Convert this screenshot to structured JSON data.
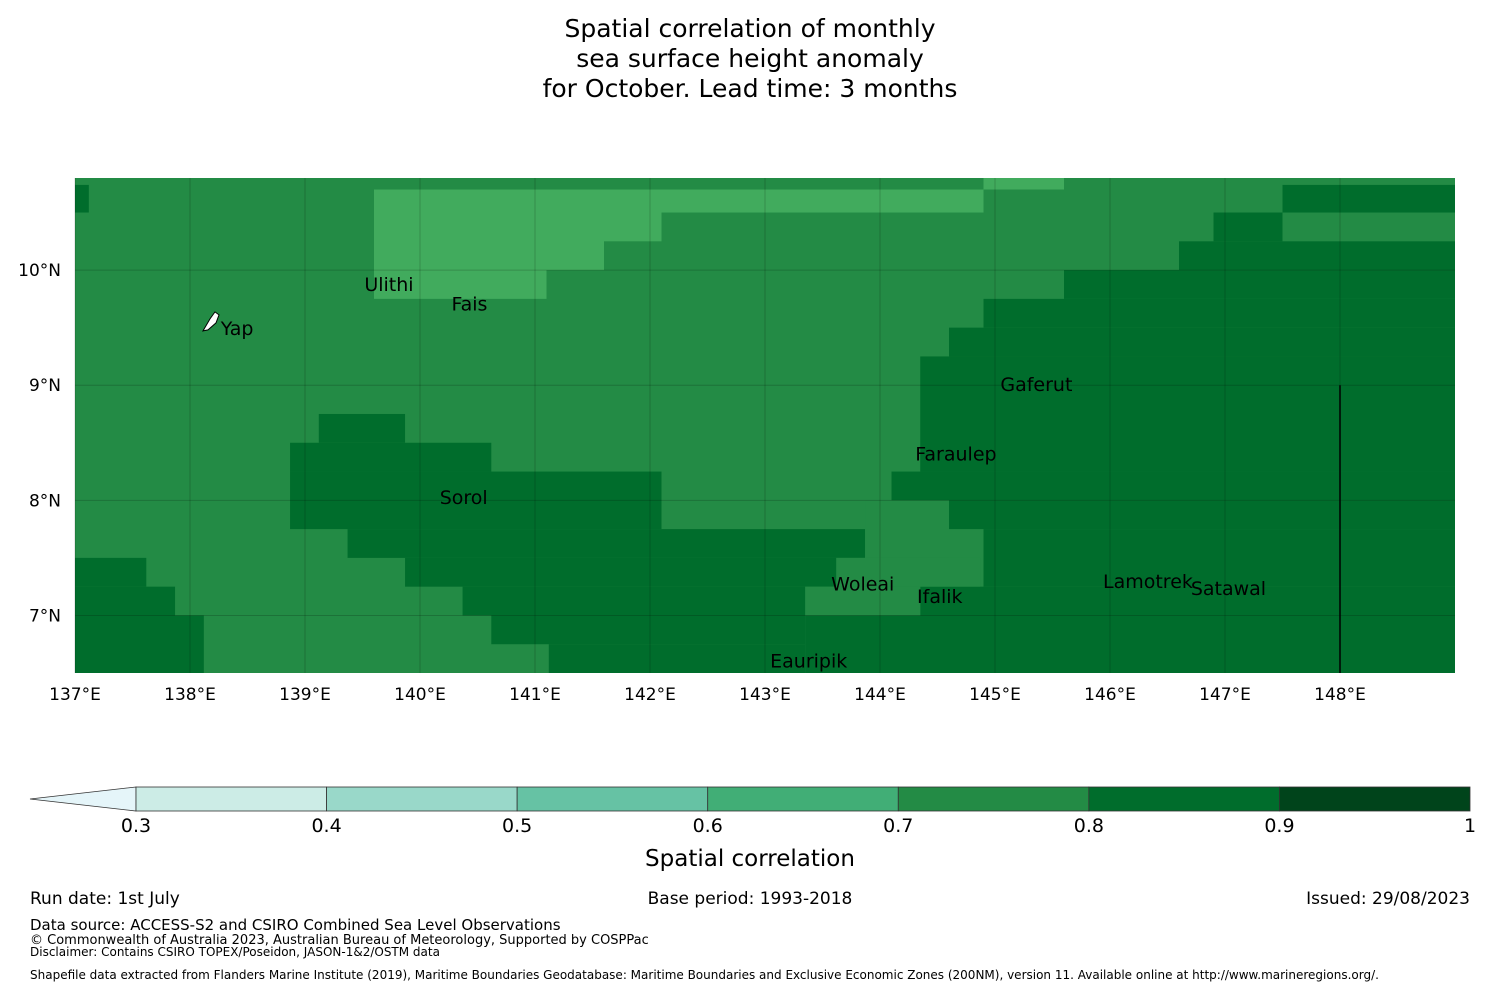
{
  "title_lines": [
    "Spatial correlation of monthly",
    "sea surface height anomaly",
    "for October. Lead time: 3 months"
  ],
  "map": {
    "lon_range": [
      137,
      149
    ],
    "lat_range": [
      6.5,
      10.8
    ],
    "lon_ticks": [
      {
        "value": 137,
        "label": "137°E"
      },
      {
        "value": 138,
        "label": "138°E"
      },
      {
        "value": 139,
        "label": "139°E"
      },
      {
        "value": 140,
        "label": "140°E"
      },
      {
        "value": 141,
        "label": "141°E"
      },
      {
        "value": 142,
        "label": "142°E"
      },
      {
        "value": 143,
        "label": "143°E"
      },
      {
        "value": 144,
        "label": "144°E"
      },
      {
        "value": 145,
        "label": "145°E"
      },
      {
        "value": 146,
        "label": "146°E"
      },
      {
        "value": 147,
        "label": "147°E"
      },
      {
        "value": 148,
        "label": "148°E"
      }
    ],
    "lat_ticks": [
      {
        "value": 10,
        "label": "10°N"
      },
      {
        "value": 9,
        "label": "9°N"
      },
      {
        "value": 8,
        "label": "8°N"
      },
      {
        "value": 7,
        "label": "7°N"
      }
    ],
    "grid": true,
    "base_color": "#238b45",
    "regions": [
      {
        "color": "#41ab5d",
        "lon": [
          139.6,
          141.1
        ],
        "lat": [
          9.75,
          10.7
        ]
      },
      {
        "color": "#41ab5d",
        "lon": [
          141.1,
          141.6
        ],
        "lat": [
          10.0,
          10.7
        ]
      },
      {
        "color": "#41ab5d",
        "lon": [
          141.6,
          142.1
        ],
        "lat": [
          10.25,
          10.7
        ]
      },
      {
        "color": "#41ab5d",
        "lon": [
          142.1,
          144.9
        ],
        "lat": [
          10.5,
          10.7
        ]
      },
      {
        "color": "#41ab5d",
        "lon": [
          144.9,
          145.6
        ],
        "lat": [
          10.7,
          10.8
        ]
      },
      {
        "color": "#006d2c",
        "lon": [
          137.0,
          137.12
        ],
        "lat": [
          10.5,
          10.74
        ]
      },
      {
        "color": "#006d2c",
        "lon": [
          147.5,
          149.0
        ],
        "lat": [
          10.5,
          10.74
        ]
      },
      {
        "color": "#006d2c",
        "lon": [
          146.9,
          147.5
        ],
        "lat": [
          10.25,
          10.5
        ]
      },
      {
        "color": "#006d2c",
        "lon": [
          146.6,
          149.0
        ],
        "lat": [
          10.0,
          10.25
        ]
      },
      {
        "color": "#006d2c",
        "lon": [
          145.6,
          149.0
        ],
        "lat": [
          9.75,
          10.0
        ]
      },
      {
        "color": "#006d2c",
        "lon": [
          144.9,
          149.0
        ],
        "lat": [
          9.5,
          9.75
        ]
      },
      {
        "color": "#006d2c",
        "lon": [
          144.6,
          149.0
        ],
        "lat": [
          9.25,
          9.5
        ]
      },
      {
        "color": "#006d2c",
        "lon": [
          144.35,
          149.0
        ],
        "lat": [
          8.25,
          9.25
        ]
      },
      {
        "color": "#006d2c",
        "lon": [
          144.1,
          149.0
        ],
        "lat": [
          8.0,
          8.25
        ]
      },
      {
        "color": "#006d2c",
        "lon": [
          144.6,
          149.0
        ],
        "lat": [
          7.75,
          8.0
        ]
      },
      {
        "color": "#006d2c",
        "lon": [
          144.9,
          149.0
        ],
        "lat": [
          7.25,
          7.75
        ]
      },
      {
        "color": "#006d2c",
        "lon": [
          144.35,
          149.0
        ],
        "lat": [
          7.0,
          7.25
        ]
      },
      {
        "color": "#006d2c",
        "lon": [
          143.35,
          149.0
        ],
        "lat": [
          6.5,
          7.0
        ]
      },
      {
        "color": "#006d2c",
        "lon": [
          139.12,
          139.87
        ],
        "lat": [
          8.5,
          8.75
        ]
      },
      {
        "color": "#006d2c",
        "lon": [
          138.87,
          140.62
        ],
        "lat": [
          8.25,
          8.5
        ]
      },
      {
        "color": "#006d2c",
        "lon": [
          138.87,
          142.1
        ],
        "lat": [
          7.75,
          8.25
        ]
      },
      {
        "color": "#006d2c",
        "lon": [
          139.37,
          143.87
        ],
        "lat": [
          7.5,
          7.75
        ]
      },
      {
        "color": "#006d2c",
        "lon": [
          139.87,
          143.62
        ],
        "lat": [
          7.25,
          7.5
        ]
      },
      {
        "color": "#006d2c",
        "lon": [
          140.37,
          143.35
        ],
        "lat": [
          7.0,
          7.25
        ]
      },
      {
        "color": "#006d2c",
        "lon": [
          140.62,
          143.35
        ],
        "lat": [
          6.75,
          7.0
        ]
      },
      {
        "color": "#006d2c",
        "lon": [
          141.12,
          143.35
        ],
        "lat": [
          6.5,
          6.75
        ]
      },
      {
        "color": "#006d2c",
        "lon": [
          137.0,
          137.62
        ],
        "lat": [
          7.25,
          7.5
        ]
      },
      {
        "color": "#006d2c",
        "lon": [
          137.0,
          137.87
        ],
        "lat": [
          7.0,
          7.25
        ]
      },
      {
        "color": "#006d2c",
        "lon": [
          137.0,
          138.12
        ],
        "lat": [
          6.5,
          7.0
        ]
      },
      {
        "color": "#238b45",
        "lon": [
          143.87,
          144.6
        ],
        "lat": [
          7.5,
          8.0
        ]
      },
      {
        "color": "#238b45",
        "lon": [
          143.62,
          144.87
        ],
        "lat": [
          7.25,
          7.5
        ]
      },
      {
        "color": "#238b45",
        "lon": [
          143.35,
          144.35
        ],
        "lat": [
          7.0,
          7.25
        ]
      }
    ],
    "black_line": {
      "lon": 148.0,
      "lat": [
        6.5,
        9.0
      ]
    },
    "islands": [
      {
        "name": "Ulithi",
        "lon": 139.73,
        "lat": 9.87
      },
      {
        "name": "Fais",
        "lon": 140.43,
        "lat": 9.7
      },
      {
        "name": "Yap",
        "lon": 138.41,
        "lat": 9.49
      },
      {
        "name": "Gaferut",
        "lon": 145.36,
        "lat": 9.0
      },
      {
        "name": "Faraulep",
        "lon": 144.66,
        "lat": 8.4
      },
      {
        "name": "Sorol",
        "lon": 140.38,
        "lat": 8.02
      },
      {
        "name": "Woleai",
        "lon": 143.85,
        "lat": 7.27
      },
      {
        "name": "Ifalik",
        "lon": 144.52,
        "lat": 7.16
      },
      {
        "name": "Lamotrek",
        "lon": 146.33,
        "lat": 7.29
      },
      {
        "name": "Satawal",
        "lon": 147.03,
        "lat": 7.23
      },
      {
        "name": "Eauripik",
        "lon": 143.38,
        "lat": 6.6
      }
    ]
  },
  "colorbar": {
    "title": "Spatial correlation",
    "extend": "min",
    "bins": [
      {
        "from": 0.3,
        "to": 0.4,
        "color": "#ccece6"
      },
      {
        "from": 0.4,
        "to": 0.5,
        "color": "#99d8c9"
      },
      {
        "from": 0.5,
        "to": 0.6,
        "color": "#66c2a4"
      },
      {
        "from": 0.6,
        "to": 0.7,
        "color": "#41ae76"
      },
      {
        "from": 0.7,
        "to": 0.8,
        "color": "#238b45"
      },
      {
        "from": 0.8,
        "to": 0.9,
        "color": "#006d2c"
      },
      {
        "from": 0.9,
        "to": 1.0,
        "color": "#00441b"
      }
    ],
    "under_color": "#e5f5f9",
    "tick_labels": [
      "0.3",
      "0.4",
      "0.5",
      "0.6",
      "0.7",
      "0.8",
      "0.9",
      "1"
    ]
  },
  "footer": {
    "run_date": "Run date: 1st July",
    "base_period": "Base period: 1993-2018",
    "issued": "Issued: 29/08/2023",
    "data_source": "Data source: ACCESS-S2 and CSIRO Combined Sea Level Observations",
    "copyright": "© Commonwealth of Australia 2023, Australian Bureau of Meteorology, Supported by COSPPac",
    "disclaimer": "Disclaimer: Contains CSIRO TOPEX/Poseidon, JASON-1&2/OSTM data",
    "shapefile": "Shapefile data extracted from Flanders Marine Institute (2019), Maritime Boundaries Geodatabase: Maritime Boundaries and Exclusive Economic Zones (200NM), version 11. Available online at http://www.marineregions.org/."
  }
}
